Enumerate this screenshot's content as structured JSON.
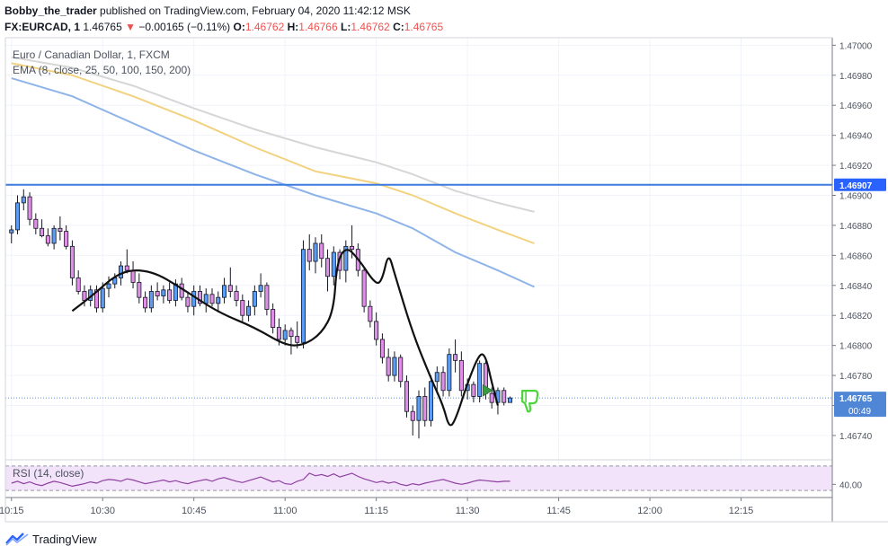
{
  "header": {
    "author": "Bobby_the_trader",
    "published_text": "published on TradingView.com, February 04, 2020 11:42:12 MSK",
    "symbol": "FX:EURCAD, 1",
    "last_price": "1.46765",
    "change_arrow": "▼",
    "change": "−0.00165 (−0.11%)",
    "ohlc": [
      {
        "label": "O:",
        "value": "1.46762"
      },
      {
        "label": "H:",
        "value": "1.46766"
      },
      {
        "label": "L:",
        "value": "1.46762"
      },
      {
        "label": "C:",
        "value": "1.46765"
      }
    ]
  },
  "legend": {
    "title": "Euro / Canadian Dollar, 1, FXCM",
    "ema": "EMA (8, close, 25, 50, 100, 150, 200)",
    "rsi": "RSI (14, close)"
  },
  "footer": {
    "brand": "TradingView",
    "icon": "tradingview-logo-icon"
  },
  "colors": {
    "up": "#5b9cf6",
    "down": "#e08ee8",
    "candle_border": "#131722",
    "ema_blue": "#8fb4e8",
    "ema_orange": "#f2d27f",
    "ema_grey": "#d6d6d6",
    "horizontal_line": "#3d7ae0",
    "price_label_bg": "#2962ff",
    "rsi_line": "#8e3fa0",
    "rsi_band": "#f2e3fb",
    "thumb_down": "#4cd43c",
    "arrow": "#3c9a43"
  },
  "chart_data": {
    "type": "candlestick",
    "title": "Euro / Canadian Dollar, 1, FXCM",
    "ylim": [
      1.46725,
      1.47005
    ],
    "y_ticks": [
      "1.47000",
      "1.46980",
      "1.46960",
      "1.46940",
      "1.46920",
      "1.46900",
      "1.46880",
      "1.46860",
      "1.46840",
      "1.46820",
      "1.46800",
      "1.46780",
      "1.46760",
      "1.46740"
    ],
    "x_ticks": [
      "10:15",
      "10:30",
      "10:45",
      "11:00",
      "11:15",
      "11:30",
      "11:45",
      "12:00",
      "12:15"
    ],
    "x_minutes_range": [
      -1,
      135
    ],
    "horizontal_line": {
      "value": 1.46907,
      "label": "1.46907"
    },
    "last_price_label": "1.46765",
    "countdown_label": "00:49",
    "candles": [
      {
        "t": 0,
        "o": 1.46875,
        "h": 1.4688,
        "l": 1.46868,
        "c": 1.46877
      },
      {
        "t": 1,
        "o": 1.46877,
        "h": 1.469,
        "l": 1.46874,
        "c": 1.46895
      },
      {
        "t": 2,
        "o": 1.46895,
        "h": 1.46904,
        "l": 1.4689,
        "c": 1.46899
      },
      {
        "t": 3,
        "o": 1.46899,
        "h": 1.46902,
        "l": 1.4688,
        "c": 1.46884
      },
      {
        "t": 4,
        "o": 1.46884,
        "h": 1.46888,
        "l": 1.46874,
        "c": 1.46878
      },
      {
        "t": 5,
        "o": 1.46878,
        "h": 1.46884,
        "l": 1.46872,
        "c": 1.46873
      },
      {
        "t": 6,
        "o": 1.46873,
        "h": 1.46878,
        "l": 1.46866,
        "c": 1.46868
      },
      {
        "t": 7,
        "o": 1.46868,
        "h": 1.4688,
        "l": 1.46864,
        "c": 1.46878
      },
      {
        "t": 8,
        "o": 1.46878,
        "h": 1.46886,
        "l": 1.4687,
        "c": 1.46876
      },
      {
        "t": 9,
        "o": 1.46876,
        "h": 1.4688,
        "l": 1.46864,
        "c": 1.46866
      },
      {
        "t": 10,
        "o": 1.46866,
        "h": 1.4687,
        "l": 1.4684,
        "c": 1.46845
      },
      {
        "t": 11,
        "o": 1.46845,
        "h": 1.4685,
        "l": 1.46834,
        "c": 1.46836
      },
      {
        "t": 12,
        "o": 1.46836,
        "h": 1.4684,
        "l": 1.46826,
        "c": 1.4683
      },
      {
        "t": 13,
        "o": 1.4683,
        "h": 1.4684,
        "l": 1.46826,
        "c": 1.46837
      },
      {
        "t": 14,
        "o": 1.46837,
        "h": 1.4684,
        "l": 1.46822,
        "c": 1.46825
      },
      {
        "t": 15,
        "o": 1.46825,
        "h": 1.46842,
        "l": 1.46822,
        "c": 1.46838
      },
      {
        "t": 16,
        "o": 1.46838,
        "h": 1.46846,
        "l": 1.46832,
        "c": 1.46841
      },
      {
        "t": 17,
        "o": 1.46841,
        "h": 1.46848,
        "l": 1.46838,
        "c": 1.46845
      },
      {
        "t": 18,
        "o": 1.46845,
        "h": 1.46856,
        "l": 1.4684,
        "c": 1.46853
      },
      {
        "t": 19,
        "o": 1.46853,
        "h": 1.46864,
        "l": 1.46848,
        "c": 1.4685
      },
      {
        "t": 20,
        "o": 1.4685,
        "h": 1.46856,
        "l": 1.46838,
        "c": 1.46842
      },
      {
        "t": 21,
        "o": 1.46842,
        "h": 1.46848,
        "l": 1.46828,
        "c": 1.46832
      },
      {
        "t": 22,
        "o": 1.46832,
        "h": 1.46836,
        "l": 1.46822,
        "c": 1.46825
      },
      {
        "t": 23,
        "o": 1.46825,
        "h": 1.4684,
        "l": 1.46822,
        "c": 1.46836
      },
      {
        "t": 24,
        "o": 1.46836,
        "h": 1.46842,
        "l": 1.4683,
        "c": 1.46833
      },
      {
        "t": 25,
        "o": 1.46833,
        "h": 1.4684,
        "l": 1.46828,
        "c": 1.46837
      },
      {
        "t": 26,
        "o": 1.46837,
        "h": 1.46842,
        "l": 1.46828,
        "c": 1.4683
      },
      {
        "t": 27,
        "o": 1.4683,
        "h": 1.46844,
        "l": 1.46826,
        "c": 1.46841
      },
      {
        "t": 28,
        "o": 1.46841,
        "h": 1.46845,
        "l": 1.4683,
        "c": 1.46832
      },
      {
        "t": 29,
        "o": 1.46832,
        "h": 1.46836,
        "l": 1.46822,
        "c": 1.46826
      },
      {
        "t": 30,
        "o": 1.46826,
        "h": 1.4684,
        "l": 1.4682,
        "c": 1.46836
      },
      {
        "t": 31,
        "o": 1.46836,
        "h": 1.4684,
        "l": 1.46826,
        "c": 1.46828
      },
      {
        "t": 32,
        "o": 1.46828,
        "h": 1.46838,
        "l": 1.46822,
        "c": 1.46834
      },
      {
        "t": 33,
        "o": 1.46834,
        "h": 1.46838,
        "l": 1.46826,
        "c": 1.46828
      },
      {
        "t": 34,
        "o": 1.46828,
        "h": 1.46836,
        "l": 1.46822,
        "c": 1.46832
      },
      {
        "t": 35,
        "o": 1.46832,
        "h": 1.46845,
        "l": 1.46828,
        "c": 1.4684
      },
      {
        "t": 36,
        "o": 1.4684,
        "h": 1.46852,
        "l": 1.46832,
        "c": 1.46836
      },
      {
        "t": 37,
        "o": 1.46836,
        "h": 1.4684,
        "l": 1.46826,
        "c": 1.4683
      },
      {
        "t": 38,
        "o": 1.4683,
        "h": 1.46834,
        "l": 1.46816,
        "c": 1.4682
      },
      {
        "t": 39,
        "o": 1.4682,
        "h": 1.4683,
        "l": 1.46816,
        "c": 1.46826
      },
      {
        "t": 40,
        "o": 1.46826,
        "h": 1.4684,
        "l": 1.4682,
        "c": 1.46836
      },
      {
        "t": 41,
        "o": 1.46836,
        "h": 1.46848,
        "l": 1.46832,
        "c": 1.4684
      },
      {
        "t": 42,
        "o": 1.4684,
        "h": 1.46842,
        "l": 1.4682,
        "c": 1.46824
      },
      {
        "t": 43,
        "o": 1.46824,
        "h": 1.46828,
        "l": 1.46808,
        "c": 1.46812
      },
      {
        "t": 44,
        "o": 1.46812,
        "h": 1.46818,
        "l": 1.468,
        "c": 1.46804
      },
      {
        "t": 45,
        "o": 1.46804,
        "h": 1.46814,
        "l": 1.468,
        "c": 1.4681
      },
      {
        "t": 46,
        "o": 1.4681,
        "h": 1.46812,
        "l": 1.46794,
        "c": 1.46806
      },
      {
        "t": 47,
        "o": 1.46806,
        "h": 1.46816,
        "l": 1.46798,
        "c": 1.46802
      },
      {
        "t": 48,
        "o": 1.46802,
        "h": 1.4687,
        "l": 1.46798,
        "c": 1.46864
      },
      {
        "t": 49,
        "o": 1.46864,
        "h": 1.46874,
        "l": 1.4685,
        "c": 1.46856
      },
      {
        "t": 50,
        "o": 1.46856,
        "h": 1.46872,
        "l": 1.46848,
        "c": 1.46868
      },
      {
        "t": 51,
        "o": 1.46868,
        "h": 1.46874,
        "l": 1.46852,
        "c": 1.46858
      },
      {
        "t": 52,
        "o": 1.46858,
        "h": 1.46864,
        "l": 1.46836,
        "c": 1.46846
      },
      {
        "t": 53,
        "o": 1.46846,
        "h": 1.46866,
        "l": 1.4684,
        "c": 1.46862
      },
      {
        "t": 54,
        "o": 1.46862,
        "h": 1.46864,
        "l": 1.46844,
        "c": 1.4685
      },
      {
        "t": 55,
        "o": 1.4685,
        "h": 1.4687,
        "l": 1.46842,
        "c": 1.46866
      },
      {
        "t": 56,
        "o": 1.46866,
        "h": 1.4688,
        "l": 1.46858,
        "c": 1.46864
      },
      {
        "t": 57,
        "o": 1.46864,
        "h": 1.46868,
        "l": 1.46846,
        "c": 1.4685
      },
      {
        "t": 58,
        "o": 1.4685,
        "h": 1.46852,
        "l": 1.46822,
        "c": 1.46826
      },
      {
        "t": 59,
        "o": 1.46826,
        "h": 1.4683,
        "l": 1.46812,
        "c": 1.46816
      },
      {
        "t": 60,
        "o": 1.46816,
        "h": 1.46822,
        "l": 1.468,
        "c": 1.46804
      },
      {
        "t": 61,
        "o": 1.46804,
        "h": 1.46808,
        "l": 1.46788,
        "c": 1.46792
      },
      {
        "t": 62,
        "o": 1.46792,
        "h": 1.46798,
        "l": 1.46776,
        "c": 1.4678
      },
      {
        "t": 63,
        "o": 1.4678,
        "h": 1.46796,
        "l": 1.46776,
        "c": 1.46792
      },
      {
        "t": 64,
        "o": 1.46792,
        "h": 1.46794,
        "l": 1.46772,
        "c": 1.46776
      },
      {
        "t": 65,
        "o": 1.46776,
        "h": 1.4678,
        "l": 1.46752,
        "c": 1.46756
      },
      {
        "t": 66,
        "o": 1.46756,
        "h": 1.4676,
        "l": 1.4674,
        "c": 1.4675
      },
      {
        "t": 67,
        "o": 1.4675,
        "h": 1.4677,
        "l": 1.46738,
        "c": 1.46766
      },
      {
        "t": 68,
        "o": 1.46766,
        "h": 1.46772,
        "l": 1.46746,
        "c": 1.4675
      },
      {
        "t": 69,
        "o": 1.4675,
        "h": 1.4678,
        "l": 1.46746,
        "c": 1.46776
      },
      {
        "t": 70,
        "o": 1.46776,
        "h": 1.46786,
        "l": 1.46768,
        "c": 1.46782
      },
      {
        "t": 71,
        "o": 1.46782,
        "h": 1.46786,
        "l": 1.46766,
        "c": 1.4677
      },
      {
        "t": 72,
        "o": 1.4677,
        "h": 1.46798,
        "l": 1.46766,
        "c": 1.46794
      },
      {
        "t": 73,
        "o": 1.46794,
        "h": 1.46804,
        "l": 1.46782,
        "c": 1.4679
      },
      {
        "t": 74,
        "o": 1.4679,
        "h": 1.46796,
        "l": 1.46766,
        "c": 1.4677
      },
      {
        "t": 75,
        "o": 1.4677,
        "h": 1.46778,
        "l": 1.46764,
        "c": 1.46774
      },
      {
        "t": 76,
        "o": 1.46774,
        "h": 1.46776,
        "l": 1.46762,
        "c": 1.46766
      },
      {
        "t": 77,
        "o": 1.46766,
        "h": 1.4679,
        "l": 1.46762,
        "c": 1.46788
      },
      {
        "t": 78,
        "o": 1.46788,
        "h": 1.4679,
        "l": 1.46764,
        "c": 1.46768
      },
      {
        "t": 79,
        "o": 1.46768,
        "h": 1.46772,
        "l": 1.46758,
        "c": 1.46762
      },
      {
        "t": 80,
        "o": 1.46762,
        "h": 1.46772,
        "l": 1.46754,
        "c": 1.4677
      },
      {
        "t": 81,
        "o": 1.4677,
        "h": 1.46772,
        "l": 1.4676,
        "c": 1.46762
      },
      {
        "t": 82,
        "o": 1.46762,
        "h": 1.46766,
        "l": 1.46762,
        "c": 1.46765
      }
    ],
    "ema_lines": [
      {
        "name": "ema_blue",
        "points": [
          [
            0,
            1.46978
          ],
          [
            10,
            1.46966
          ],
          [
            20,
            1.46948
          ],
          [
            30,
            1.4693
          ],
          [
            40,
            1.46914
          ],
          [
            50,
            1.469
          ],
          [
            60,
            1.46888
          ],
          [
            66,
            1.46878
          ],
          [
            73,
            1.46862
          ],
          [
            80,
            1.4685
          ],
          [
            86,
            1.46839
          ]
        ]
      },
      {
        "name": "ema_orange",
        "points": [
          [
            0,
            1.46988
          ],
          [
            10,
            1.4698
          ],
          [
            20,
            1.46966
          ],
          [
            30,
            1.4695
          ],
          [
            40,
            1.46932
          ],
          [
            50,
            1.46916
          ],
          [
            60,
            1.46908
          ],
          [
            66,
            1.469
          ],
          [
            73,
            1.46888
          ],
          [
            80,
            1.46877
          ],
          [
            86,
            1.46868
          ]
        ]
      },
      {
        "name": "ema_grey",
        "points": [
          [
            0,
            1.46992
          ],
          [
            10,
            1.46985
          ],
          [
            20,
            1.46973
          ],
          [
            30,
            1.46958
          ],
          [
            40,
            1.46944
          ],
          [
            50,
            1.46932
          ],
          [
            60,
            1.46922
          ],
          [
            66,
            1.46914
          ],
          [
            73,
            1.46903
          ],
          [
            80,
            1.46895
          ],
          [
            86,
            1.46889
          ]
        ]
      }
    ],
    "drawing_path": [
      [
        10,
        1.46823
      ],
      [
        13,
        1.46832
      ],
      [
        18,
        1.4685
      ],
      [
        23,
        1.4685
      ],
      [
        28,
        1.46838
      ],
      [
        34,
        1.46822
      ],
      [
        40,
        1.46812
      ],
      [
        45,
        1.468
      ],
      [
        48,
        1.468
      ],
      [
        51,
        1.46808
      ],
      [
        53,
        1.46823
      ],
      [
        53.5,
        1.46855
      ],
      [
        55,
        1.46866
      ],
      [
        57,
        1.46858
      ],
      [
        60,
        1.4684
      ],
      [
        61,
        1.46844
      ],
      [
        62,
        1.46862
      ],
      [
        63,
        1.46848
      ],
      [
        66,
        1.46808
      ],
      [
        69,
        1.46778
      ],
      [
        71,
        1.4676
      ],
      [
        72,
        1.46745
      ],
      [
        73,
        1.4675
      ],
      [
        75,
        1.46775
      ],
      [
        77,
        1.46795
      ],
      [
        78,
        1.46793
      ],
      [
        79,
        1.46775
      ],
      [
        80,
        1.4676
      ]
    ],
    "rsi": {
      "label": "RSI (14, close)",
      "tick": "40.00",
      "values": [
        42,
        45,
        41,
        44,
        40,
        38,
        42,
        45,
        43,
        40,
        37,
        39,
        41,
        44,
        42,
        46,
        48,
        47,
        45,
        49,
        47,
        44,
        41,
        43,
        45,
        47,
        44,
        46,
        43,
        41,
        44,
        46,
        48,
        45,
        49,
        51,
        48,
        45,
        43,
        46,
        49,
        52,
        48,
        44,
        46,
        41,
        40,
        45,
        48,
        58,
        54,
        56,
        53,
        57,
        52,
        55,
        58,
        53,
        49,
        46,
        43,
        45,
        42,
        44,
        40,
        38,
        41,
        39,
        42,
        44,
        46,
        48,
        45,
        42,
        40,
        42,
        45,
        47,
        46,
        45,
        44,
        45,
        45
      ]
    },
    "xlabel": "",
    "ylabel": ""
  }
}
